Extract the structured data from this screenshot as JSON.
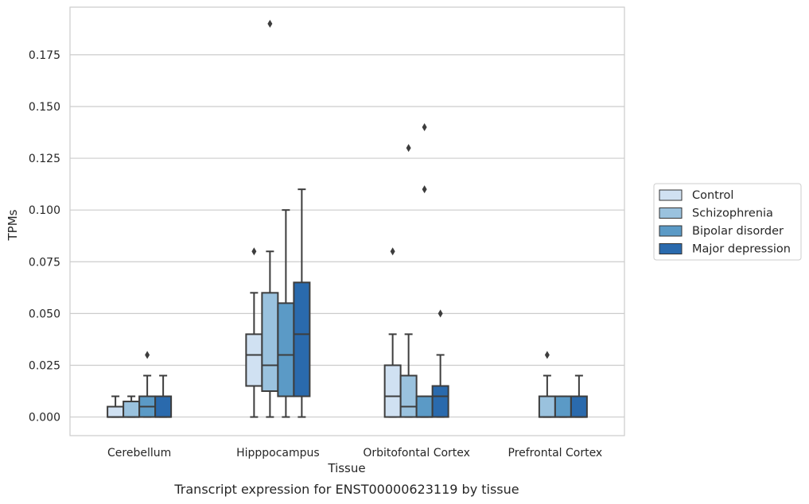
{
  "chart_data": {
    "type": "box",
    "xlabel": "Tissue",
    "ylabel": "TPMs",
    "caption": "Transcript expression for ENST00000623119 by tissue",
    "ylim": [
      -0.009,
      0.198
    ],
    "yticks": [
      "0.000",
      "0.025",
      "0.050",
      "0.075",
      "0.100",
      "0.125",
      "0.150",
      "0.175"
    ],
    "grid": true,
    "legend_position": "right",
    "categories": [
      "Cerebellum",
      "Hipppocampus",
      "Orbitofontal Cortex",
      "Prefrontal Cortex"
    ],
    "series": [
      {
        "name": "Control",
        "color": "#d0e1f2",
        "boxes": [
          {
            "whisker_low": 0.0,
            "q1": 0.0,
            "median": 0.0,
            "q3": 0.005,
            "whisker_high": 0.01,
            "outliers": []
          },
          {
            "whisker_low": 0.0,
            "q1": 0.015,
            "median": 0.03,
            "q3": 0.04,
            "whisker_high": 0.06,
            "outliers": [
              0.08
            ]
          },
          {
            "whisker_low": 0.0,
            "q1": 0.0,
            "median": 0.01,
            "q3": 0.025,
            "whisker_high": 0.04,
            "outliers": [
              0.08
            ]
          },
          null
        ]
      },
      {
        "name": "Schizophrenia",
        "color": "#9ac2de",
        "boxes": [
          {
            "whisker_low": 0.0,
            "q1": 0.0,
            "median": 0.0,
            "q3": 0.0075,
            "whisker_high": 0.01,
            "outliers": []
          },
          {
            "whisker_low": 0.0,
            "q1": 0.0125,
            "median": 0.025,
            "q3": 0.06,
            "whisker_high": 0.08,
            "outliers": [
              0.19
            ]
          },
          {
            "whisker_low": 0.0,
            "q1": 0.0,
            "median": 0.005,
            "q3": 0.02,
            "whisker_high": 0.04,
            "outliers": [
              0.13
            ]
          },
          {
            "whisker_low": 0.0,
            "q1": 0.0,
            "median": 0.0,
            "q3": 0.01,
            "whisker_high": 0.02,
            "outliers": [
              0.03
            ]
          }
        ]
      },
      {
        "name": "Bipolar disorder",
        "color": "#5b9ac6",
        "boxes": [
          {
            "whisker_low": 0.0,
            "q1": 0.0,
            "median": 0.005,
            "q3": 0.01,
            "whisker_high": 0.02,
            "outliers": [
              0.03
            ]
          },
          {
            "whisker_low": 0.0,
            "q1": 0.01,
            "median": 0.03,
            "q3": 0.055,
            "whisker_high": 0.1,
            "outliers": []
          },
          {
            "whisker_low": 0.0,
            "q1": 0.0,
            "median": 0.0,
            "q3": 0.01,
            "whisker_high": 0.01,
            "outliers": [
              0.14,
              0.11
            ]
          },
          {
            "whisker_low": 0.0,
            "q1": 0.0,
            "median": 0.0,
            "q3": 0.01,
            "whisker_high": 0.01,
            "outliers": []
          }
        ]
      },
      {
        "name": "Major depression",
        "color": "#2a6aad",
        "boxes": [
          {
            "whisker_low": 0.0,
            "q1": 0.0,
            "median": 0.0,
            "q3": 0.01,
            "whisker_high": 0.02,
            "outliers": []
          },
          {
            "whisker_low": 0.0,
            "q1": 0.01,
            "median": 0.04,
            "q3": 0.065,
            "whisker_high": 0.11,
            "outliers": []
          },
          {
            "whisker_low": 0.0,
            "q1": 0.0,
            "median": 0.01,
            "q3": 0.015,
            "whisker_high": 0.03,
            "outliers": [
              0.05
            ]
          },
          {
            "whisker_low": 0.0,
            "q1": 0.0,
            "median": 0.0,
            "q3": 0.01,
            "whisker_high": 0.02,
            "outliers": []
          }
        ]
      }
    ]
  }
}
